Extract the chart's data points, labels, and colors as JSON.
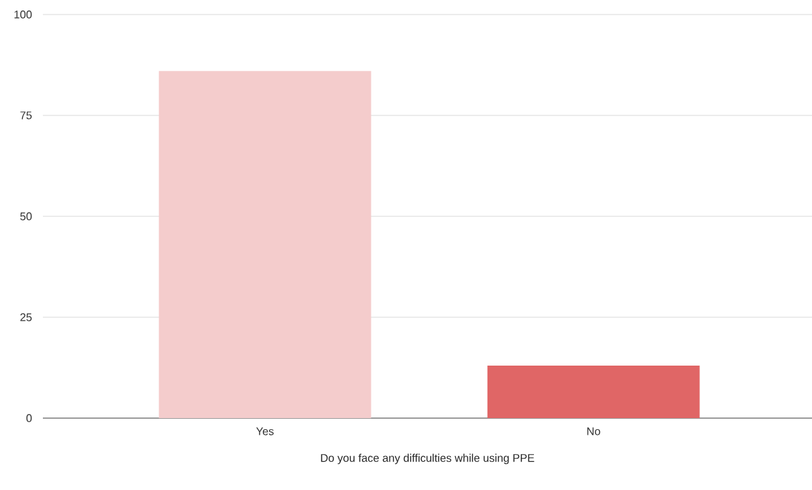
{
  "chart_data": {
    "type": "bar",
    "xlabel": "Do you face any difficulties while using PPE",
    "categories": [
      "Yes",
      "No"
    ],
    "values": [
      86,
      13
    ],
    "colors": [
      "#f4cccc",
      "#e06666"
    ],
    "ylim": [
      0,
      100
    ],
    "yticks": [
      0,
      25,
      50,
      75,
      100
    ],
    "grid": "y"
  }
}
